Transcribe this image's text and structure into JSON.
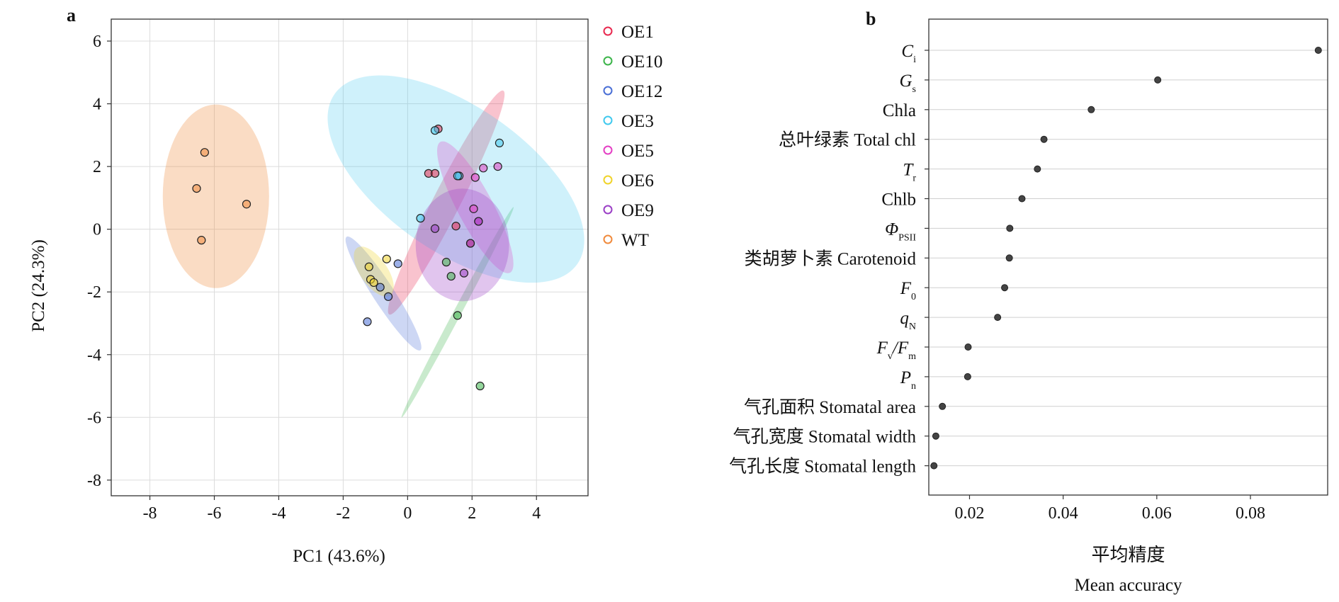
{
  "chart_data": [
    {
      "panel": "a",
      "type": "scatter",
      "xlabel": "PC1 (43.6%)",
      "ylabel": "PC2 (24.3%)",
      "xlim": [
        -9.2,
        5.6
      ],
      "ylim": [
        -8.5,
        6.7
      ],
      "xticks": [
        -8,
        -6,
        -4,
        -2,
        0,
        2,
        4
      ],
      "yticks": [
        -8,
        -6,
        -4,
        -2,
        0,
        2,
        4,
        6
      ],
      "grid": true,
      "legend_position": "right",
      "series": [
        {
          "name": "OE1",
          "color": "#e8294f",
          "points": [
            [
              0.65,
              1.78
            ],
            [
              0.85,
              1.78
            ],
            [
              1.5,
              0.1
            ],
            [
              0.95,
              3.2
            ],
            [
              1.95,
              -0.45
            ]
          ],
          "ellipse": {
            "cx": 1.2,
            "cy": 0.85,
            "rx": 3.9,
            "ry": 0.42,
            "angle_deg": -63,
            "opacity": 0.28
          }
        },
        {
          "name": "OE10",
          "color": "#3cb54a",
          "points": [
            [
              1.2,
              -1.05
            ],
            [
              1.35,
              -1.5
            ],
            [
              1.55,
              -2.75
            ],
            [
              2.25,
              -5.0
            ]
          ],
          "ellipse": {
            "cx": 1.55,
            "cy": -2.65,
            "rx": 3.7,
            "ry": 0.12,
            "angle_deg": -62,
            "opacity": 0.28
          }
        },
        {
          "name": "OE12",
          "color": "#4a6fd6",
          "points": [
            [
              -0.3,
              -1.1
            ],
            [
              -0.85,
              -1.85
            ],
            [
              -0.6,
              -2.15
            ],
            [
              -1.25,
              -2.95
            ]
          ],
          "ellipse": {
            "cx": -0.75,
            "cy": -2.05,
            "rx": 2.1,
            "ry": 0.33,
            "angle_deg": 57,
            "opacity": 0.28
          }
        },
        {
          "name": "OE3",
          "color": "#40c9ee",
          "points": [
            [
              0.85,
              3.15
            ],
            [
              2.85,
              2.75
            ],
            [
              1.6,
              1.7
            ],
            [
              0.4,
              0.35
            ],
            [
              1.55,
              1.7
            ]
          ],
          "ellipse": {
            "cx": 1.5,
            "cy": 1.6,
            "rx": 4.6,
            "ry": 2.25,
            "angle_deg": 35,
            "opacity": 0.25
          }
        },
        {
          "name": "OE5",
          "color": "#e43fc4",
          "points": [
            [
              2.8,
              2.0
            ],
            [
              2.35,
              1.95
            ],
            [
              2.1,
              1.65
            ],
            [
              2.05,
              0.65
            ],
            [
              2.2,
              0.25
            ]
          ],
          "ellipse": {
            "cx": 2.1,
            "cy": 0.7,
            "rx": 2.3,
            "ry": 0.55,
            "angle_deg": 62,
            "opacity": 0.28
          }
        },
        {
          "name": "OE6",
          "color": "#f0d32a",
          "points": [
            [
              -0.65,
              -0.95
            ],
            [
              -1.2,
              -1.2
            ],
            [
              -1.15,
              -1.6
            ],
            [
              -1.05,
              -1.7
            ]
          ],
          "ellipse": {
            "cx": -1.05,
            "cy": -1.35,
            "rx": 0.9,
            "ry": 0.42,
            "angle_deg": 55,
            "opacity": 0.3
          }
        },
        {
          "name": "OE9",
          "color": "#9b3fc6",
          "points": [
            [
              0.85,
              0.02
            ],
            [
              1.95,
              -0.45
            ],
            [
              1.75,
              -1.4
            ],
            [
              2.2,
              0.25
            ]
          ],
          "ellipse": {
            "cx": 1.7,
            "cy": -0.5,
            "rx": 1.45,
            "ry": 1.75,
            "angle_deg": 0,
            "opacity": 0.3
          }
        },
        {
          "name": "WT",
          "color": "#f08a3c",
          "points": [
            [
              -6.3,
              2.45
            ],
            [
              -6.55,
              1.3
            ],
            [
              -5.0,
              0.8
            ],
            [
              -6.4,
              -0.35
            ]
          ],
          "ellipse": {
            "cx": -5.95,
            "cy": 1.05,
            "rx": 1.65,
            "ry": 2.85,
            "angle_deg": 0,
            "opacity": 0.3
          }
        }
      ]
    },
    {
      "panel": "b",
      "type": "dot",
      "xlabel_cn": "平均精度",
      "xlabel_en": "Mean accuracy",
      "xlim": [
        0.0113,
        0.0965
      ],
      "xticks": [
        0.02,
        0.04,
        0.06,
        0.08
      ],
      "xtick_labels": [
        "0.02",
        "0.04",
        "0.06",
        "0.08"
      ],
      "grid": true,
      "variables": [
        {
          "label": "C",
          "sub": "i",
          "italic": true,
          "value": 0.0945
        },
        {
          "label": "G",
          "sub": "s",
          "italic": true,
          "value": 0.0602
        },
        {
          "label": "Chla",
          "value": 0.046
        },
        {
          "label": "总叶绿素 Total chl",
          "value": 0.0359
        },
        {
          "label": "T",
          "sub": "r",
          "italic": true,
          "value": 0.0345
        },
        {
          "label": "Chlb",
          "value": 0.0312
        },
        {
          "label": "Φ",
          "sub": "PSII",
          "italic": true,
          "value": 0.0286
        },
        {
          "label": "类胡萝卜素 Carotenoid",
          "value": 0.0285
        },
        {
          "label": "F",
          "sub": "0",
          "italic": true,
          "value": 0.0275
        },
        {
          "label": "q",
          "sub": "N",
          "italic": true,
          "value": 0.026
        },
        {
          "label": "F",
          "sub": "v",
          "label2": "/F",
          "sub2": "m",
          "italic": true,
          "value": 0.0197
        },
        {
          "label": "P",
          "sub": "n",
          "italic": true,
          "value": 0.0196
        },
        {
          "label": "气孔面积 Stomatal area",
          "value": 0.0142
        },
        {
          "label": "气孔宽度 Stomatal width",
          "value": 0.0128
        },
        {
          "label": "气孔长度 Stomatal length",
          "value": 0.0124
        }
      ]
    }
  ]
}
